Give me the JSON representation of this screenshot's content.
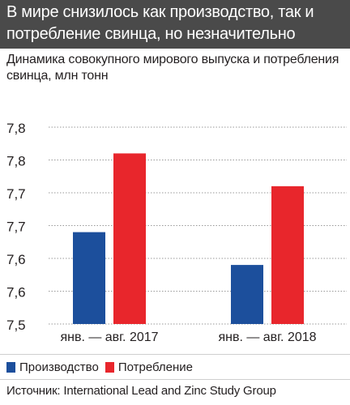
{
  "headline": {
    "line1": "В мире снизилось как производство, так и",
    "line2": "потребление свинца, но незначительно"
  },
  "subtitle": {
    "line1": "Динамика совокупного мирового выпуска и потребления",
    "line2": "свинца, млн тонн"
  },
  "chart_data": {
    "type": "bar",
    "categories": [
      "янв. — авг. 2017",
      "янв. — авг. 2018"
    ],
    "series": [
      {
        "name": "Производство",
        "color": "#1c4f9c",
        "values": [
          7.64,
          7.59
        ]
      },
      {
        "name": "Потребление",
        "color": "#e8262c",
        "values": [
          7.76,
          7.71
        ]
      }
    ],
    "ylim": [
      7.5,
      7.8
    ],
    "yticks": [
      7.5,
      7.55,
      7.6,
      7.65,
      7.7,
      7.75,
      7.8
    ],
    "ytick_labels": [
      "7,5",
      "7,6",
      "7,6",
      "7,7",
      "7,7",
      "7,8",
      "7,8"
    ],
    "grid": true,
    "legend": "bottom-left"
  },
  "source": "Источник: International Lead and Zinc Study Group"
}
